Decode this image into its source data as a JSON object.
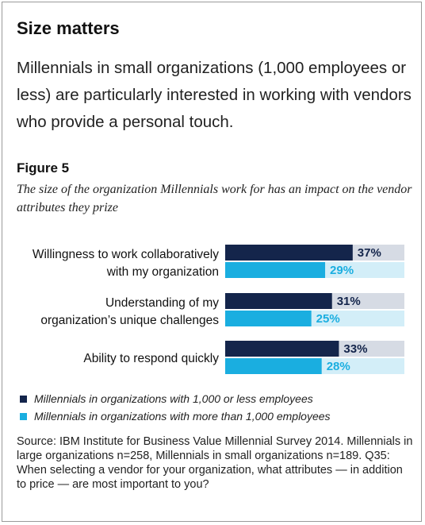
{
  "header": {
    "title": "Size matters",
    "lede": "Millennials in small organizations (1,000 employees or less) are particularly interested in working with vendors who provide a personal touch."
  },
  "figure": {
    "label": "Figure 5",
    "caption": "The size of the organization Millennials work for has an impact on the vendor attributes they prize"
  },
  "chart_data": {
    "type": "bar",
    "orientation": "horizontal",
    "categories": [
      [
        "Willingness to work collaboratively",
        "with my organization"
      ],
      [
        "Understanding of my",
        "organization’s unique challenges"
      ],
      [
        "Ability to respond quickly"
      ]
    ],
    "series": [
      {
        "name": "Millennials in organizations with 1,000 or less employees",
        "values": [
          37,
          31,
          33
        ],
        "labels": [
          "37%",
          "31%",
          "33%"
        ],
        "color": "#14254b",
        "track_color": "#d6dbe4"
      },
      {
        "name": "Millennials in organizations with more than 1,000 employees",
        "values": [
          29,
          25,
          28
        ],
        "labels": [
          "29%",
          "25%",
          "28%"
        ],
        "color": "#1aaee0",
        "track_color": "#d3eef8"
      }
    ],
    "xlim": [
      0,
      52
    ],
    "grid": false,
    "legend_position": "bottom-left"
  },
  "source": "Source: IBM Institute for Business Value Millennial Survey 2014. Millennials in large organizations n=258, Millennials in small organizations n=189. Q35: When selecting a vendor for your organization, what attributes — in addition to price — are most important to you?"
}
